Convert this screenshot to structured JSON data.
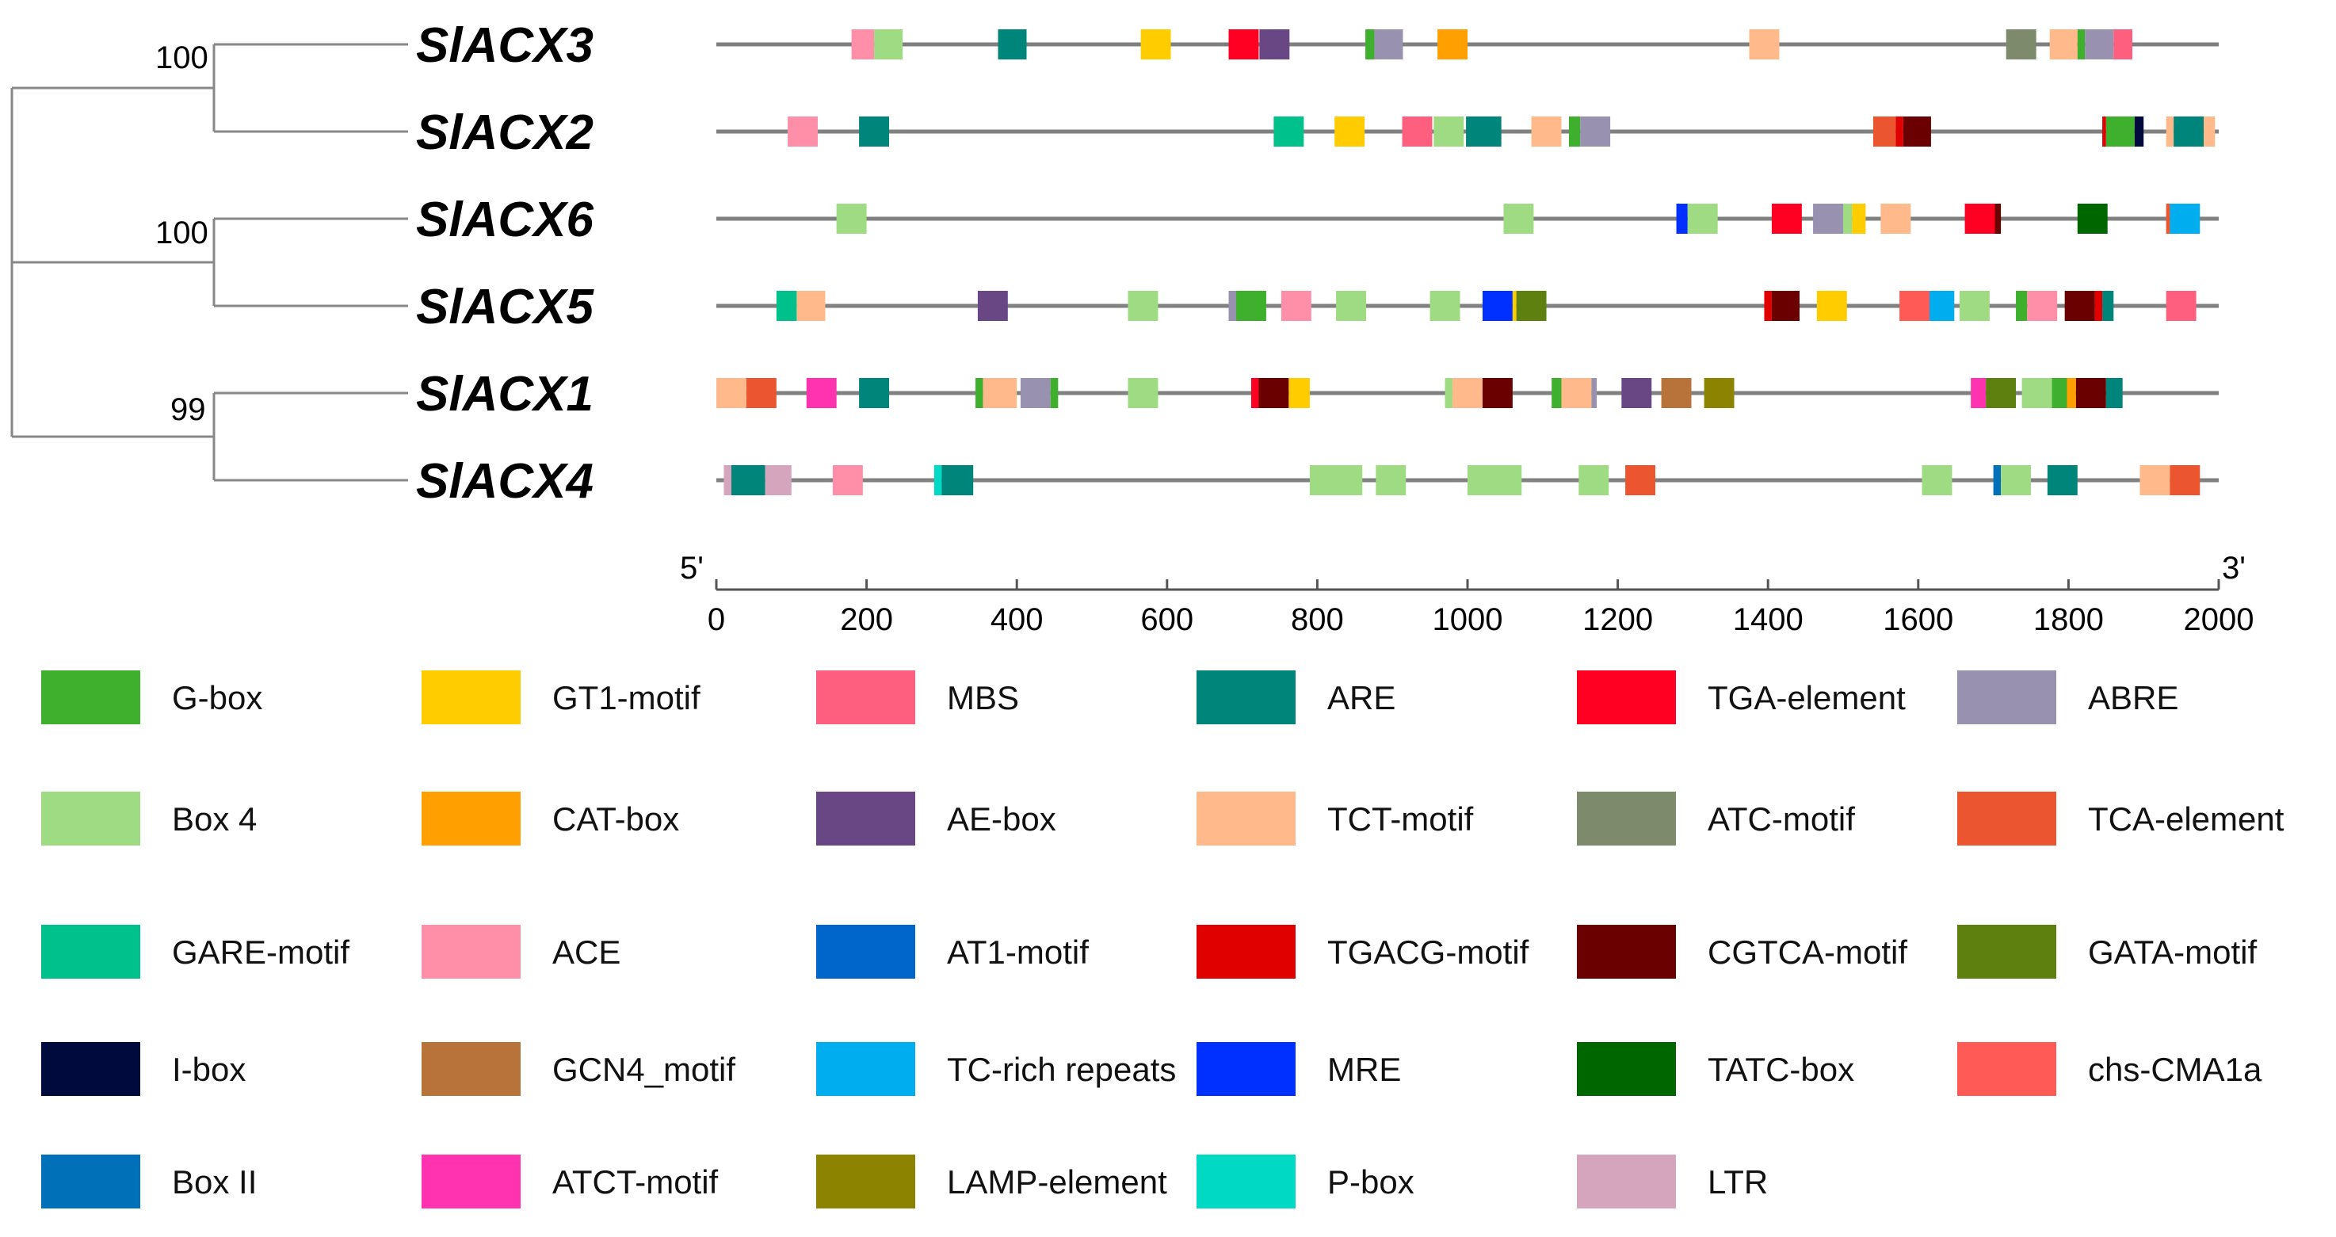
{
  "chart_data": {
    "type": "diagram",
    "title": "",
    "axis": {
      "min": 0,
      "max": 2000,
      "ticks": [
        0,
        200,
        400,
        600,
        800,
        1000,
        1200,
        1400,
        1600,
        1800,
        2000
      ],
      "start_label": "5'",
      "end_label": "3'"
    },
    "tree": {
      "bootstrap": [
        "100",
        "100",
        "99"
      ]
    },
    "genes": [
      {
        "name": "SlACX3",
        "elements": [
          {
            "m": "ACE",
            "s": 180,
            "e": 210
          },
          {
            "m": "Box 4",
            "s": 210,
            "e": 248
          },
          {
            "m": "ARE",
            "s": 375,
            "e": 413
          },
          {
            "m": "GT1-motif",
            "s": 565,
            "e": 605
          },
          {
            "m": "TGA-element",
            "s": 682,
            "e": 722
          },
          {
            "m": "AE-box",
            "s": 723,
            "e": 763
          },
          {
            "m": "G-box",
            "s": 864,
            "e": 876
          },
          {
            "m": "ABRE",
            "s": 876,
            "e": 914
          },
          {
            "m": "CAT-box",
            "s": 960,
            "e": 1000
          },
          {
            "m": "TCT-motif",
            "s": 1375,
            "e": 1415
          },
          {
            "m": "ATC-motif",
            "s": 1717,
            "e": 1757
          },
          {
            "m": "TCT-motif",
            "s": 1775,
            "e": 1812
          },
          {
            "m": "G-box",
            "s": 1812,
            "e": 1822
          },
          {
            "m": "ABRE",
            "s": 1822,
            "e": 1860
          },
          {
            "m": "MBS",
            "s": 1860,
            "e": 1885
          }
        ]
      },
      {
        "name": "SlACX2",
        "elements": [
          {
            "m": "ACE",
            "s": 95,
            "e": 135
          },
          {
            "m": "ARE",
            "s": 190,
            "e": 230
          },
          {
            "m": "GARE-motif",
            "s": 742,
            "e": 782
          },
          {
            "m": "GT1-motif",
            "s": 823,
            "e": 863
          },
          {
            "m": "MBS",
            "s": 913,
            "e": 953
          },
          {
            "m": "Box 4",
            "s": 955,
            "e": 995
          },
          {
            "m": "ARE",
            "s": 998,
            "e": 1045
          },
          {
            "m": "TCT-motif",
            "s": 1085,
            "e": 1125
          },
          {
            "m": "G-box",
            "s": 1135,
            "e": 1150
          },
          {
            "m": "ABRE",
            "s": 1150,
            "e": 1190
          },
          {
            "m": "TCA-element",
            "s": 1540,
            "e": 1570
          },
          {
            "m": "TGACG-motif",
            "s": 1570,
            "e": 1580
          },
          {
            "m": "CGTCA-motif",
            "s": 1580,
            "e": 1617
          },
          {
            "m": "TGACG-motif",
            "s": 1845,
            "e": 1850
          },
          {
            "m": "G-box",
            "s": 1850,
            "e": 1888
          },
          {
            "m": "I-box",
            "s": 1888,
            "e": 1900
          },
          {
            "m": "TCT-motif",
            "s": 1930,
            "e": 1940
          },
          {
            "m": "ARE",
            "s": 1940,
            "e": 1980
          },
          {
            "m": "TCT-motif",
            "s": 1980,
            "e": 1995
          }
        ]
      },
      {
        "name": "SlACX6",
        "elements": [
          {
            "m": "Box 4",
            "s": 160,
            "e": 200
          },
          {
            "m": "Box 4",
            "s": 1048,
            "e": 1088
          },
          {
            "m": "MRE",
            "s": 1278,
            "e": 1293
          },
          {
            "m": "Box 4",
            "s": 1293,
            "e": 1333
          },
          {
            "m": "TGA-element",
            "s": 1405,
            "e": 1445
          },
          {
            "m": "ABRE",
            "s": 1460,
            "e": 1500
          },
          {
            "m": "Box 4",
            "s": 1500,
            "e": 1512
          },
          {
            "m": "GT1-motif",
            "s": 1512,
            "e": 1530
          },
          {
            "m": "TCT-motif",
            "s": 1550,
            "e": 1590
          },
          {
            "m": "TGA-element",
            "s": 1662,
            "e": 1702
          },
          {
            "m": "CGTCA-motif",
            "s": 1702,
            "e": 1710
          },
          {
            "m": "TATC-box",
            "s": 1812,
            "e": 1852
          },
          {
            "m": "TCA-element",
            "s": 1930,
            "e": 1935
          },
          {
            "m": "TC-rich repeats",
            "s": 1935,
            "e": 1975
          }
        ]
      },
      {
        "name": "SlACX5",
        "elements": [
          {
            "m": "GARE-motif",
            "s": 80,
            "e": 107
          },
          {
            "m": "TCT-motif",
            "s": 107,
            "e": 145
          },
          {
            "m": "AE-box",
            "s": 348,
            "e": 388
          },
          {
            "m": "Box 4",
            "s": 548,
            "e": 588
          },
          {
            "m": "ABRE",
            "s": 682,
            "e": 692
          },
          {
            "m": "G-box",
            "s": 692,
            "e": 732
          },
          {
            "m": "ACE",
            "s": 752,
            "e": 792
          },
          {
            "m": "Box 4",
            "s": 825,
            "e": 865
          },
          {
            "m": "Box 4",
            "s": 950,
            "e": 990
          },
          {
            "m": "MRE",
            "s": 1020,
            "e": 1060
          },
          {
            "m": "GT1-motif",
            "s": 1060,
            "e": 1065
          },
          {
            "m": "GATA-motif",
            "s": 1065,
            "e": 1105
          },
          {
            "m": "TGACG-motif",
            "s": 1395,
            "e": 1405
          },
          {
            "m": "CGTCA-motif",
            "s": 1405,
            "e": 1442
          },
          {
            "m": "GT1-motif",
            "s": 1465,
            "e": 1505
          },
          {
            "m": "chs-CMA1a",
            "s": 1575,
            "e": 1615
          },
          {
            "m": "TC-rich repeats",
            "s": 1615,
            "e": 1648
          },
          {
            "m": "Box 4",
            "s": 1655,
            "e": 1695
          },
          {
            "m": "G-box",
            "s": 1730,
            "e": 1745
          },
          {
            "m": "ACE",
            "s": 1745,
            "e": 1785
          },
          {
            "m": "CGTCA-motif",
            "s": 1795,
            "e": 1835
          },
          {
            "m": "TGACG-motif",
            "s": 1835,
            "e": 1845
          },
          {
            "m": "ARE",
            "s": 1845,
            "e": 1860
          },
          {
            "m": "MBS",
            "s": 1930,
            "e": 1970
          }
        ]
      },
      {
        "name": "SlACX1",
        "elements": [
          {
            "m": "TCT-motif",
            "s": 0,
            "e": 40
          },
          {
            "m": "TCA-element",
            "s": 40,
            "e": 80
          },
          {
            "m": "ATCT-motif",
            "s": 120,
            "e": 160
          },
          {
            "m": "ARE",
            "s": 190,
            "e": 230
          },
          {
            "m": "G-box",
            "s": 345,
            "e": 355
          },
          {
            "m": "TCT-motif",
            "s": 355,
            "e": 400
          },
          {
            "m": "ABRE",
            "s": 405,
            "e": 445
          },
          {
            "m": "G-box",
            "s": 445,
            "e": 455
          },
          {
            "m": "Box 4",
            "s": 548,
            "e": 588
          },
          {
            "m": "TGA-element",
            "s": 712,
            "e": 722
          },
          {
            "m": "CGTCA-motif",
            "s": 722,
            "e": 762
          },
          {
            "m": "GT1-motif",
            "s": 762,
            "e": 790
          },
          {
            "m": "Box 4",
            "s": 970,
            "e": 980
          },
          {
            "m": "TCT-motif",
            "s": 980,
            "e": 1020
          },
          {
            "m": "CGTCA-motif",
            "s": 1020,
            "e": 1060
          },
          {
            "m": "G-box",
            "s": 1112,
            "e": 1125
          },
          {
            "m": "TCT-motif",
            "s": 1125,
            "e": 1165
          },
          {
            "m": "ABRE",
            "s": 1165,
            "e": 1172
          },
          {
            "m": "AE-box",
            "s": 1205,
            "e": 1245
          },
          {
            "m": "GCN4_motif",
            "s": 1258,
            "e": 1298
          },
          {
            "m": "LAMP-element",
            "s": 1315,
            "e": 1355
          },
          {
            "m": "ATCT-motif",
            "s": 1670,
            "e": 1690
          },
          {
            "m": "GATA-motif",
            "s": 1690,
            "e": 1730
          },
          {
            "m": "Box 4",
            "s": 1738,
            "e": 1778
          },
          {
            "m": "G-box",
            "s": 1778,
            "e": 1798
          },
          {
            "m": "CAT-box",
            "s": 1798,
            "e": 1810
          },
          {
            "m": "CGTCA-motif",
            "s": 1810,
            "e": 1850
          },
          {
            "m": "ARE",
            "s": 1850,
            "e": 1872
          }
        ]
      },
      {
        "name": "SlACX4",
        "elements": [
          {
            "m": "LTR",
            "s": 10,
            "e": 20
          },
          {
            "m": "ARE",
            "s": 20,
            "e": 65
          },
          {
            "m": "LTR",
            "s": 65,
            "e": 100
          },
          {
            "m": "ACE",
            "s": 155,
            "e": 195
          },
          {
            "m": "P-box",
            "s": 290,
            "e": 300
          },
          {
            "m": "ARE",
            "s": 300,
            "e": 342
          },
          {
            "m": "Box 4",
            "s": 790,
            "e": 860
          },
          {
            "m": "Box 4",
            "s": 878,
            "e": 918
          },
          {
            "m": "Box 4",
            "s": 1000,
            "e": 1072
          },
          {
            "m": "Box 4",
            "s": 1148,
            "e": 1188
          },
          {
            "m": "TCA-element",
            "s": 1210,
            "e": 1250
          },
          {
            "m": "Box 4",
            "s": 1605,
            "e": 1645
          },
          {
            "m": "Box II",
            "s": 1700,
            "e": 1710
          },
          {
            "m": "Box 4",
            "s": 1710,
            "e": 1750
          },
          {
            "m": "ARE",
            "s": 1772,
            "e": 1812
          },
          {
            "m": "TCT-motif",
            "s": 1895,
            "e": 1935
          },
          {
            "m": "TCA-element",
            "s": 1935,
            "e": 1975
          }
        ]
      }
    ],
    "legend": [
      {
        "name": "G-box",
        "color": "#3fb02e"
      },
      {
        "name": "GT1-motif",
        "color": "#ffcc00"
      },
      {
        "name": "MBS",
        "color": "#ff5f7e"
      },
      {
        "name": "ARE",
        "color": "#00857a"
      },
      {
        "name": "TGA-element",
        "color": "#ff0022"
      },
      {
        "name": "ABRE",
        "color": "#9891b0"
      },
      {
        "name": "Box 4",
        "color": "#9fdb82"
      },
      {
        "name": "CAT-box",
        "color": "#ffa000"
      },
      {
        "name": "AE-box",
        "color": "#694785"
      },
      {
        "name": "TCT-motif",
        "color": "#ffb98a"
      },
      {
        "name": "ATC-motif",
        "color": "#7e8a6c"
      },
      {
        "name": "TCA-element",
        "color": "#eb5530"
      },
      {
        "name": "GARE-motif",
        "color": "#00c08b"
      },
      {
        "name": "ACE",
        "color": "#ff8fa8"
      },
      {
        "name": "AT1-motif",
        "color": "#0066cc"
      },
      {
        "name": "TGACG-motif",
        "color": "#e00000"
      },
      {
        "name": "CGTCA-motif",
        "color": "#6b0000"
      },
      {
        "name": "GATA-motif",
        "color": "#5e800e"
      },
      {
        "name": "I-box",
        "color": "#000a3d"
      },
      {
        "name": "GCN4_motif",
        "color": "#b8733a"
      },
      {
        "name": "TC-rich repeats",
        "color": "#00adef"
      },
      {
        "name": "MRE",
        "color": "#0030ff"
      },
      {
        "name": "TATC-box",
        "color": "#006600"
      },
      {
        "name": "chs-CMA1a",
        "color": "#ff5a55"
      },
      {
        "name": "Box II",
        "color": "#0070b8"
      },
      {
        "name": "ATCT-motif",
        "color": "#ff33b0"
      },
      {
        "name": "LAMP-element",
        "color": "#8c8400"
      },
      {
        "name": "P-box",
        "color": "#00d9c3"
      },
      {
        "name": "LTR",
        "color": "#d4a5bc"
      }
    ]
  }
}
